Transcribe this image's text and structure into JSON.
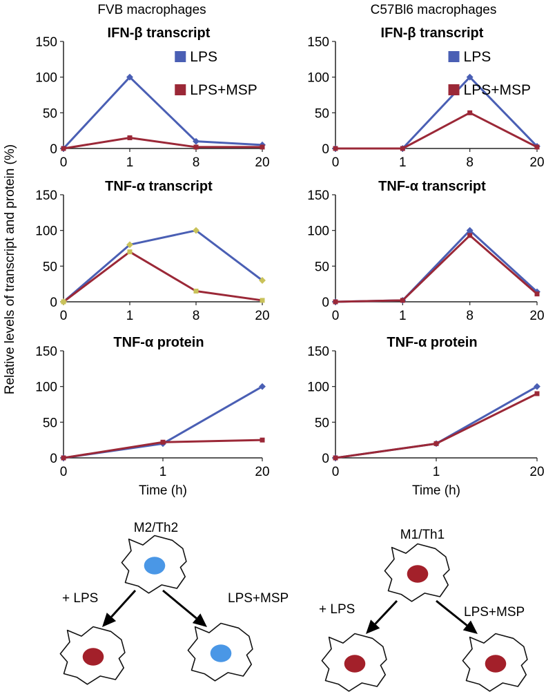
{
  "columns": [
    "FVB macrophages",
    "C57Bl6 macrophages"
  ],
  "ylabel": "Relative levels of transcript and protein (%)",
  "xlabel": "Time (h)",
  "colors": {
    "LPS": "#4a5fb4",
    "LPS+MSP": "#9b2837",
    "marker_yellow": "#c9c25a",
    "nucleus_blue": "#4a97e6",
    "nucleus_red": "#a3202a"
  },
  "chart_data": [
    {
      "type": "line",
      "title": "IFN-β transcript",
      "column": 0,
      "row": 0,
      "categories": [
        "0",
        "1",
        "8",
        "20"
      ],
      "ylim": [
        0,
        150
      ],
      "yticks": [
        "0",
        "50",
        "100",
        "150"
      ],
      "legend": true,
      "series": [
        {
          "name": "LPS",
          "values": [
            0,
            100,
            10,
            5
          ]
        },
        {
          "name": "LPS+MSP",
          "values": [
            0,
            15,
            2,
            2
          ]
        }
      ]
    },
    {
      "type": "line",
      "title": "IFN-β transcript",
      "column": 1,
      "row": 0,
      "categories": [
        "0",
        "1",
        "8",
        "20"
      ],
      "ylim": [
        0,
        150
      ],
      "yticks": [
        "0",
        "50",
        "100",
        "150"
      ],
      "legend": true,
      "series": [
        {
          "name": "LPS",
          "values": [
            0,
            0,
            100,
            3
          ]
        },
        {
          "name": "LPS+MSP",
          "values": [
            0,
            0,
            50,
            2
          ]
        }
      ]
    },
    {
      "type": "line",
      "title": "TNF-α transcript",
      "column": 0,
      "row": 1,
      "categories": [
        "0",
        "1",
        "8",
        "20"
      ],
      "ylim": [
        0,
        150
      ],
      "yticks": [
        "0",
        "50",
        "100",
        "150"
      ],
      "yellow_markers": true,
      "series": [
        {
          "name": "LPS",
          "values": [
            0,
            80,
            100,
            30
          ]
        },
        {
          "name": "LPS+MSP",
          "values": [
            0,
            70,
            15,
            2
          ]
        }
      ]
    },
    {
      "type": "line",
      "title": "TNF-α transcript",
      "column": 1,
      "row": 1,
      "categories": [
        "0",
        "1",
        "8",
        "20"
      ],
      "ylim": [
        0,
        150
      ],
      "yticks": [
        "0",
        "50",
        "100",
        "150"
      ],
      "series": [
        {
          "name": "LPS",
          "values": [
            0,
            2,
            100,
            14
          ]
        },
        {
          "name": "LPS+MSP",
          "values": [
            0,
            2,
            93,
            11
          ]
        }
      ]
    },
    {
      "type": "line",
      "title": "TNF-α protein",
      "column": 0,
      "row": 2,
      "categories": [
        "0",
        "1",
        "20"
      ],
      "ylim": [
        0,
        150
      ],
      "yticks": [
        "0",
        "50",
        "100",
        "150"
      ],
      "xlabel": true,
      "series": [
        {
          "name": "LPS",
          "values": [
            0,
            20,
            100
          ]
        },
        {
          "name": "LPS+MSP",
          "values": [
            0,
            22,
            25
          ]
        }
      ]
    },
    {
      "type": "line",
      "title": "TNF-α protein",
      "column": 1,
      "row": 2,
      "categories": [
        "0",
        "1",
        "20"
      ],
      "ylim": [
        0,
        150
      ],
      "yticks": [
        "0",
        "50",
        "100",
        "150"
      ],
      "xlabel": true,
      "series": [
        {
          "name": "LPS",
          "values": [
            0,
            20,
            100
          ]
        },
        {
          "name": "LPS+MSP",
          "values": [
            0,
            20,
            90
          ]
        }
      ]
    }
  ],
  "diagram": [
    {
      "label": "M2/Th2",
      "left_arrow": "+ LPS",
      "right_arrow": "LPS+MSP",
      "top_nucleus": "nucleus_blue",
      "left_nucleus": "nucleus_red",
      "right_nucleus": "nucleus_blue"
    },
    {
      "label": "M1/Th1",
      "left_arrow": "+ LPS",
      "right_arrow": "LPS+MSP",
      "top_nucleus": "nucleus_red",
      "left_nucleus": "nucleus_red",
      "right_nucleus": "nucleus_red"
    }
  ]
}
